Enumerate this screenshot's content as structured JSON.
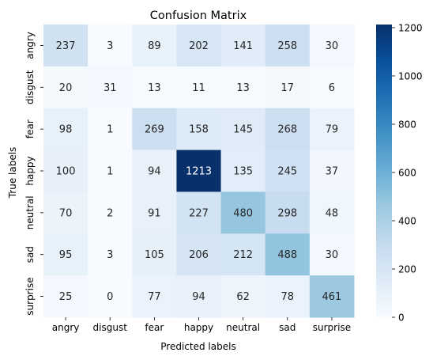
{
  "chart_data": {
    "type": "heatmap",
    "title": "Confusion Matrix",
    "xlabel": "Predicted labels",
    "ylabel": "True labels",
    "x_categories": [
      "angry",
      "disgust",
      "fear",
      "happy",
      "neutral",
      "sad",
      "surprise"
    ],
    "y_categories": [
      "angry",
      "disgust",
      "fear",
      "happy",
      "neutral",
      "sad",
      "surprise"
    ],
    "values": [
      [
        237,
        3,
        89,
        202,
        141,
        258,
        30
      ],
      [
        20,
        31,
        13,
        11,
        13,
        17,
        6
      ],
      [
        98,
        1,
        269,
        158,
        145,
        268,
        79
      ],
      [
        100,
        1,
        94,
        1213,
        135,
        245,
        37
      ],
      [
        70,
        2,
        91,
        227,
        480,
        298,
        48
      ],
      [
        95,
        3,
        105,
        206,
        212,
        488,
        30
      ],
      [
        25,
        0,
        77,
        94,
        62,
        78,
        461
      ]
    ],
    "colormap": "Blues",
    "color_range": [
      0,
      1213
    ],
    "colorbar_ticks": [
      0,
      200,
      400,
      600,
      800,
      1000,
      1200
    ],
    "colors": {
      "low": "#f7fbff",
      "high": "#08306b",
      "text_dark": "#262626",
      "text_light": "#ffffff"
    }
  }
}
